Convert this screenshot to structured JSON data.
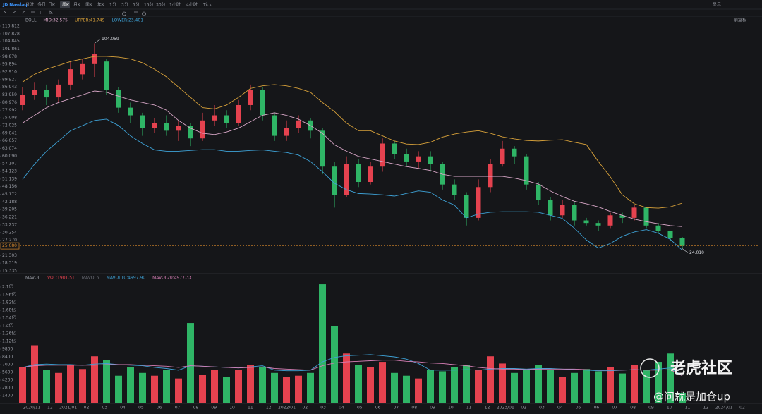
{
  "toolbar": {
    "symbol": "JD Nasdaq",
    "periods": [
      "分时",
      "多日",
      "日K",
      "周K",
      "月K",
      "季K",
      "年K",
      "1分",
      "3分",
      "5分",
      "15分",
      "30分",
      "1小时",
      "4小时",
      "Tick"
    ],
    "active_period": 3,
    "display": "显示",
    "adjust": "前复权"
  },
  "chart_data": [
    {
      "type": "candlestick",
      "legend": [
        {
          "text": "BOLL",
          "color": "#9a9da6"
        },
        {
          "text": "MID:32.575",
          "color": "#d7a6c6"
        },
        {
          "text": "UPPER:41.749",
          "color": "#d9a23a"
        },
        {
          "text": "LOWER:23.401",
          "color": "#3ea3d8"
        }
      ],
      "up_color": "#e5424f",
      "down_color": "#2fb566",
      "open": [
        80,
        84,
        86,
        83,
        88,
        92,
        96,
        97,
        86,
        79,
        76,
        71,
        73,
        70,
        72,
        67,
        74,
        76,
        73,
        80,
        86,
        76,
        68,
        71,
        74,
        70,
        56,
        45,
        57,
        50,
        56,
        65,
        61,
        58,
        60,
        57,
        49,
        45,
        36,
        48,
        57,
        63,
        60,
        49,
        43,
        37,
        41,
        35,
        34,
        33,
        37,
        36,
        40,
        33,
        31,
        28
      ],
      "high": [
        87,
        89,
        88,
        90,
        97,
        98,
        104.059,
        98,
        87,
        81,
        77,
        75,
        76,
        74,
        73,
        77,
        80,
        78,
        82,
        88,
        87,
        77,
        74,
        76,
        75,
        71,
        58,
        60,
        59,
        58,
        67,
        66,
        63,
        62,
        62,
        58,
        51,
        46,
        51,
        59,
        66,
        64,
        61,
        50,
        44,
        43,
        42,
        36,
        35,
        38,
        38,
        41,
        40,
        34,
        31,
        28.5
      ],
      "low": [
        78,
        82,
        80,
        81,
        86,
        90,
        91,
        84,
        77,
        73,
        68,
        69,
        68,
        66,
        64,
        66,
        72,
        71,
        72,
        78,
        74,
        66,
        66,
        69,
        67,
        53,
        40,
        44,
        48,
        49,
        54,
        59,
        56,
        55,
        54,
        47,
        43,
        33,
        35,
        46,
        56,
        57,
        47,
        41,
        35,
        36,
        33,
        33,
        31,
        32,
        34,
        35,
        32,
        30,
        27,
        24.01
      ],
      "close": [
        84,
        86,
        83,
        88,
        94,
        96,
        100,
        86,
        79,
        76,
        71,
        73,
        70,
        72,
        67,
        74,
        76,
        73,
        80,
        86,
        76,
        68,
        71,
        74,
        70,
        56,
        45,
        57,
        50,
        56,
        65,
        61,
        58,
        60,
        57,
        49,
        45,
        36,
        48,
        57,
        63,
        60,
        49,
        43,
        37,
        41,
        35,
        34,
        33,
        37,
        36,
        40,
        33,
        31,
        28,
        25.08
      ],
      "overlays": [
        {
          "color": "#d9a23a",
          "values": [
            89,
            92,
            94,
            95.5,
            97,
            98,
            99,
            99,
            98.7,
            98,
            96.5,
            94,
            91,
            87,
            83,
            79,
            78.5,
            80,
            83,
            86.5,
            87.5,
            88,
            87.5,
            86.5,
            85,
            81,
            77.5,
            73,
            70,
            70,
            68,
            66,
            64.8,
            64.6,
            65.5,
            67.5,
            68.7,
            69.5,
            70,
            69,
            67.6,
            66.8,
            66.2,
            66,
            66.3,
            66.5,
            65.5,
            64.6,
            58,
            52,
            45,
            41.5,
            40,
            39.8,
            40.3,
            41.749
          ]
        },
        {
          "color": "#d7a6c6",
          "values": [
            73,
            76,
            79,
            81,
            82.5,
            84,
            85.5,
            85,
            83.5,
            82,
            81,
            80,
            78,
            74,
            71,
            69,
            68.5,
            69.5,
            71,
            73.5,
            76,
            77,
            76,
            74.5,
            72,
            69,
            64.5,
            62,
            60,
            59,
            58,
            57,
            56,
            55.3,
            54.5,
            53,
            52.2,
            52.2,
            52.2,
            52.2,
            52.2,
            51.5,
            50.5,
            49.2,
            46.5,
            44.3,
            42.5,
            41.5,
            40.3,
            38.5,
            37,
            35.5,
            34.5,
            33.7,
            33,
            32.575
          ]
        },
        {
          "color": "#3ea3d8",
          "values": [
            51,
            57,
            62,
            66,
            70,
            72,
            74,
            74.5,
            72,
            68,
            65,
            62.5,
            62,
            62,
            62.3,
            62.6,
            62.6,
            62,
            62,
            62.3,
            62.5,
            62,
            61.5,
            60.5,
            58,
            54,
            49.5,
            47,
            45.5,
            45.3,
            45,
            44.5,
            45.5,
            46.5,
            46,
            43,
            41,
            36,
            37.5,
            38.2,
            38.4,
            38.4,
            38.4,
            38.2,
            37,
            35.8,
            32,
            27.4,
            24.2,
            26,
            28.8,
            30.5,
            31.4,
            30,
            27.6,
            23.401
          ]
        }
      ],
      "ylim": [
        15.335,
        110.812
      ],
      "yticks": [
        110.812,
        107.828,
        104.845,
        101.861,
        98.878,
        95.894,
        {
          "value": 92.91,
          "label": "92.910"
        },
        89.927,
        86.943,
        83.959,
        80.976,
        77.992,
        75.008,
        72.025,
        69.041,
        66.057,
        63.074,
        {
          "value": 60.09,
          "label": "60.090"
        },
        57.107,
        54.123,
        51.139,
        48.156,
        45.172,
        42.188,
        39.205,
        36.221,
        33.237,
        30.254,
        {
          "value": 27.27,
          "label": "27.270"
        },
        21.303,
        18.319,
        15.335
      ],
      "last_price": {
        "value": 25.08,
        "label": "25.080"
      },
      "annotations": [
        {
          "text": "104.059",
          "value": 104.059
        },
        {
          "text": "24.010",
          "value": 24.01
        }
      ]
    },
    {
      "type": "bar",
      "legend": [
        {
          "text": "MAVOL",
          "color": "#9a9da6"
        },
        {
          "text": "VOL:1901.51",
          "color": "#e5424f"
        },
        {
          "text": "MAVOL5",
          "color": "#6b6e77"
        },
        {
          "text": "MAVOL10:4997.90",
          "color": "#3ea3d8"
        },
        {
          "text": "MAVOL20:4977.33",
          "color": "#d77fb6"
        }
      ],
      "values": [
        6500,
        10500,
        6000,
        5500,
        7000,
        6200,
        8500,
        7800,
        5000,
        6500,
        5500,
        5000,
        6000,
        4500,
        14500,
        5200,
        6000,
        4800,
        6000,
        7000,
        6500,
        5500,
        4800,
        5000,
        5500,
        21500,
        14000,
        9000,
        7000,
        6500,
        7500,
        5500,
        5000,
        4500,
        6000,
        5800,
        6500,
        7000,
        6000,
        8500,
        7200,
        5500,
        6000,
        7000,
        6000,
        4800,
        5500,
        6200,
        5800,
        6500,
        5400,
        7000,
        6000,
        7500,
        9000,
        1901.51
      ],
      "overlays": [
        {
          "color": "#3ea3d8",
          "values": [
            6500,
            7000,
            7100,
            7000,
            7000,
            6900,
            7100,
            7200,
            7000,
            6900,
            6800,
            6500,
            6300,
            6000,
            6800,
            6700,
            6600,
            6500,
            6400,
            6600,
            6800,
            6000,
            5900,
            5900,
            6000,
            7500,
            8300,
            8600,
            8700,
            8800,
            8600,
            8400,
            8000,
            7200,
            6000,
            6000,
            6000,
            6100,
            6000,
            6200,
            6300,
            6300,
            6200,
            6300,
            6300,
            6200,
            6100,
            6000,
            5900,
            5900,
            6000,
            6100,
            6000,
            6200,
            6400,
            4997.9
          ]
        },
        {
          "color": "#d77fb6",
          "values": [
            6500,
            6800,
            6900,
            6900,
            6900,
            6900,
            6900,
            7000,
            7000,
            7000,
            6900,
            6800,
            6700,
            6500,
            6800,
            6700,
            6600,
            6500,
            6400,
            6500,
            6600,
            6300,
            6200,
            6100,
            6000,
            6800,
            7300,
            7500,
            7600,
            7700,
            7800,
            7800,
            7600,
            7500,
            7300,
            7200,
            7000,
            6800,
            6500,
            6300,
            6200,
            6200,
            6100,
            6200,
            6200,
            6200,
            6200,
            6100,
            6000,
            6000,
            6000,
            6100,
            6000,
            6000,
            6100,
            4977.33
          ]
        }
      ],
      "ylim": [
        0,
        22400
      ],
      "yticks": [
        {
          "value": 21000,
          "label": "2.1亿"
        },
        {
          "value": 19600,
          "label": "1.96亿"
        },
        {
          "value": 18200,
          "label": "1.82亿"
        },
        {
          "value": 16800,
          "label": "1.68亿"
        },
        {
          "value": 15400,
          "label": "1.54亿"
        },
        {
          "value": 14000,
          "label": "1.4亿"
        },
        {
          "value": 12600,
          "label": "1.26亿"
        },
        {
          "value": 11200,
          "label": "1.12亿"
        },
        9800,
        8400,
        7000,
        5600,
        4200,
        2800,
        1400
      ],
      "x_labels": [
        "2020/11",
        "12",
        "2021/01",
        "02",
        "03",
        "04",
        "05",
        "06",
        "07",
        "08",
        "09",
        "10",
        "11",
        "12",
        "2022/01",
        "02",
        "03",
        "04",
        "05",
        "06",
        "07",
        "08",
        "09",
        "10",
        "11",
        "12",
        "2023/01",
        "02",
        "03",
        "04",
        "05",
        "06",
        "07",
        "08",
        "09",
        "10",
        "11",
        "12",
        "2024/01",
        "02"
      ]
    }
  ],
  "watermark": {
    "brand": "老虎社区",
    "user": "@问就是加仓up"
  }
}
